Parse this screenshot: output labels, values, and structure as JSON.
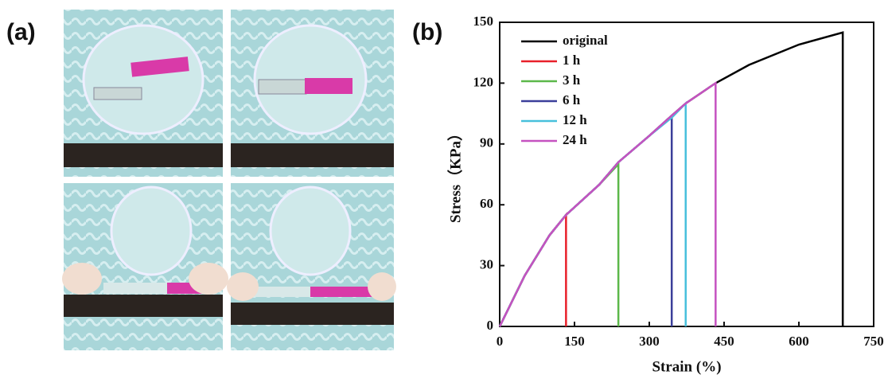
{
  "panel_labels": [
    "(a)",
    "(b)"
  ],
  "chart_data": {
    "type": "line",
    "xlabel": "Strain (%)",
    "ylabel": "Stress（KPa）",
    "xlim": [
      0,
      750
    ],
    "ylim": [
      0,
      150
    ],
    "xticks": [
      0,
      150,
      300,
      450,
      600,
      750
    ],
    "yticks": [
      0,
      30,
      60,
      90,
      120,
      150
    ],
    "legend": "upper left",
    "series": [
      {
        "name": "original",
        "color": "#000000",
        "x": [
          0,
          50,
          100,
          133,
          200,
          238,
          300,
          345,
          373,
          433,
          500,
          600,
          688,
          688
        ],
        "values": [
          0,
          25,
          45,
          55,
          70,
          81,
          94,
          104,
          110,
          120,
          129,
          139,
          145,
          0
        ]
      },
      {
        "name": "1 h",
        "color": "#e8202a",
        "x": [
          0,
          50,
          100,
          133,
          133
        ],
        "values": [
          0,
          25,
          45,
          55,
          0
        ]
      },
      {
        "name": "3 h",
        "color": "#5cb84a",
        "x": [
          0,
          50,
          100,
          133,
          200,
          238,
          238
        ],
        "values": [
          0,
          25,
          45,
          55,
          70,
          80,
          0
        ]
      },
      {
        "name": "6 h",
        "color": "#3b3f9a",
        "x": [
          0,
          50,
          100,
          133,
          200,
          238,
          300,
          345,
          345
        ],
        "values": [
          0,
          25,
          45,
          55,
          70,
          81,
          94,
          104,
          0
        ]
      },
      {
        "name": "12 h",
        "color": "#48c0dc",
        "x": [
          0,
          50,
          100,
          133,
          200,
          238,
          300,
          345,
          373,
          373
        ],
        "values": [
          0,
          25,
          45,
          55,
          70,
          81,
          94,
          103,
          110,
          0
        ]
      },
      {
        "name": "24 h",
        "color": "#c552c0",
        "x": [
          0,
          50,
          100,
          133,
          200,
          238,
          300,
          345,
          373,
          433,
          433
        ],
        "values": [
          0,
          25,
          45,
          55,
          70,
          81,
          94,
          104,
          110,
          120,
          0
        ]
      }
    ]
  }
}
